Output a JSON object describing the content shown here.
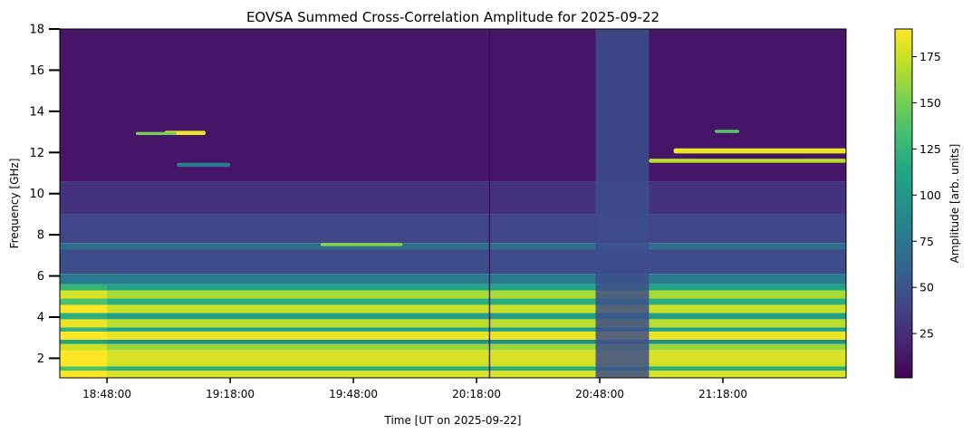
{
  "chart_data": {
    "type": "heatmap",
    "title": "EOVSA Summed Cross-Correlation Amplitude for 2025-09-22",
    "xlabel": "Time [UT on 2025-09-22]",
    "ylabel": "Frequency [GHz]",
    "colorbar_label": "Amplitude [arb. units]",
    "colormap": "viridis",
    "colors": {
      "viridis": [
        "#440154",
        "#482475",
        "#414487",
        "#355f8d",
        "#2a788e",
        "#21918c",
        "#22a884",
        "#44bf70",
        "#7ad151",
        "#bddf26",
        "#fde725"
      ]
    },
    "x_ticks": [
      "18:48:00",
      "19:18:00",
      "19:48:00",
      "20:18:00",
      "20:48:00",
      "21:18:00"
    ],
    "y_ticks": [
      2,
      4,
      6,
      8,
      10,
      12,
      14,
      16,
      18
    ],
    "colorbar_ticks": [
      25,
      50,
      75,
      100,
      125,
      150,
      175
    ],
    "xlim": [
      "18:36:30",
      "21:48:00"
    ],
    "ylim": [
      1.05,
      18
    ],
    "clim": [
      1,
      190
    ],
    "frequency_bands": [
      {
        "f": [
          1.05,
          1.4
        ],
        "value": 180
      },
      {
        "f": [
          1.4,
          1.6
        ],
        "value": 120
      },
      {
        "f": [
          1.6,
          1.8
        ],
        "value": 175
      },
      {
        "f": [
          1.8,
          2.4
        ],
        "value": 180
      },
      {
        "f": [
          2.4,
          2.7
        ],
        "value": 160
      },
      {
        "f": [
          2.7,
          2.9
        ],
        "value": 95
      },
      {
        "f": [
          2.9,
          3.3
        ],
        "value": 185
      },
      {
        "f": [
          3.3,
          3.5
        ],
        "value": 110
      },
      {
        "f": [
          3.5,
          3.9
        ],
        "value": 170
      },
      {
        "f": [
          3.9,
          4.2
        ],
        "value": 105
      },
      {
        "f": [
          4.2,
          4.6
        ],
        "value": 175
      },
      {
        "f": [
          4.6,
          4.9
        ],
        "value": 120
      },
      {
        "f": [
          4.9,
          5.3
        ],
        "value": 165
      },
      {
        "f": [
          5.3,
          5.6
        ],
        "value": 110
      },
      {
        "f": [
          5.6,
          6.1
        ],
        "value": 80
      },
      {
        "f": [
          6.1,
          7.3
        ],
        "value": 45
      },
      {
        "f": [
          7.3,
          7.6
        ],
        "value": 70
      },
      {
        "f": [
          7.6,
          9.0
        ],
        "value": 40
      },
      {
        "f": [
          9.0,
          10.6
        ],
        "value": 28
      },
      {
        "f": [
          10.6,
          18.0
        ],
        "value": 12
      }
    ],
    "time_segments": [
      {
        "t": [
          "18:36:30",
          "18:48:00"
        ],
        "value_offset": 15
      },
      {
        "t": [
          "20:47:00",
          "21:00:00"
        ],
        "value_override": 45
      },
      {
        "t": [
          "20:21:00",
          "20:21:20"
        ],
        "value_override": 3
      }
    ],
    "features": [
      {
        "t": [
          "19:02:00",
          "19:12:00"
        ],
        "f": [
          12.85,
          13.05
        ],
        "value": 185
      },
      {
        "t": [
          "18:55:00",
          "19:05:00"
        ],
        "f": [
          12.85,
          13.0
        ],
        "value": 150
      },
      {
        "t": [
          "19:05:00",
          "19:18:00"
        ],
        "f": [
          11.3,
          11.5
        ],
        "value": 80
      },
      {
        "t": [
          "19:40:00",
          "20:00:00"
        ],
        "f": [
          7.45,
          7.6
        ],
        "value": 155
      },
      {
        "t": [
          "21:00:00",
          "21:48:00"
        ],
        "f": [
          11.5,
          11.7
        ],
        "value": 170
      },
      {
        "t": [
          "21:06:00",
          "21:48:00"
        ],
        "f": [
          11.95,
          12.2
        ],
        "value": 185
      },
      {
        "t": [
          "21:16:00",
          "21:22:00"
        ],
        "f": [
          12.95,
          13.1
        ],
        "value": 140
      }
    ]
  }
}
